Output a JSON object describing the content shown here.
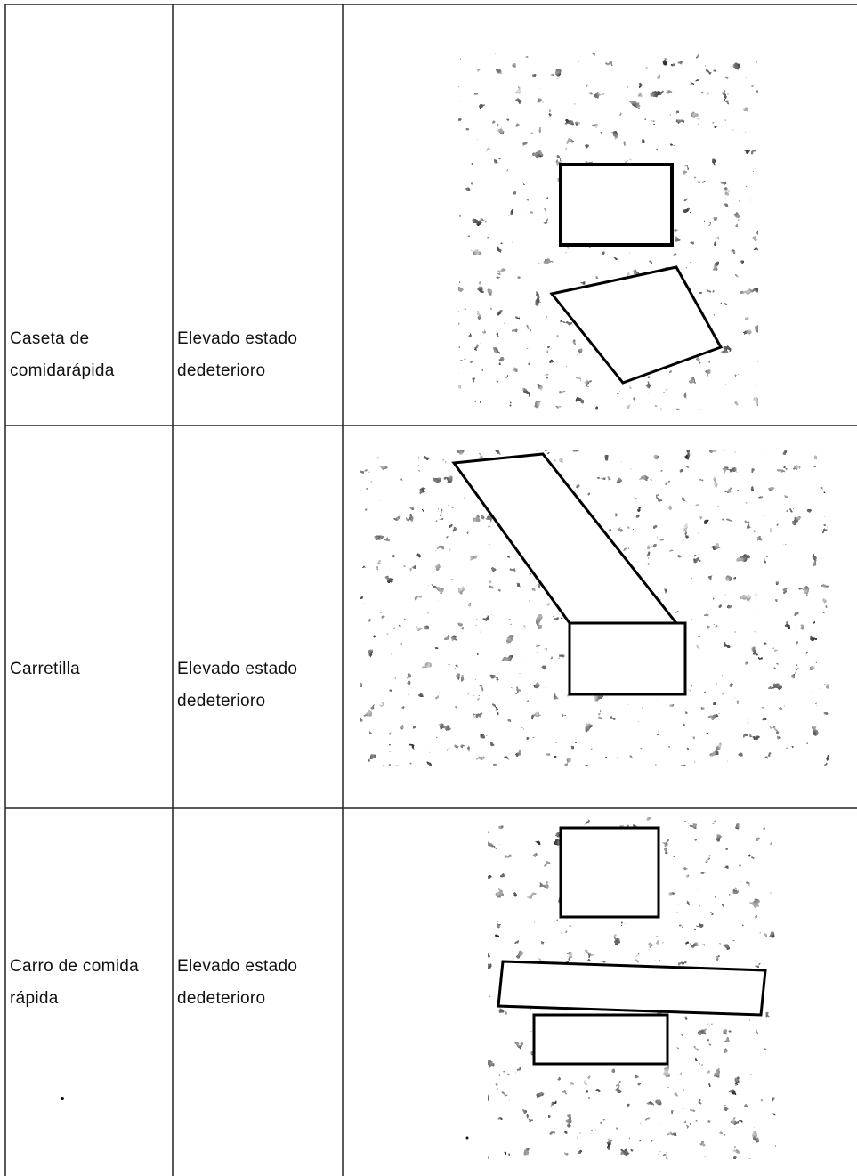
{
  "table": {
    "rows": [
      [
        [
          "Caseta de",
          "comidarápida"
        ],
        [
          "Elevado estado",
          "dedeterioro"
        ]
      ],
      [
        [
          "Carretilla"
        ],
        [
          "Elevado estado",
          "dedeterioro"
        ]
      ],
      [
        [
          "Carro de comida",
          "rápida"
        ],
        [
          "Elevado estado",
          "dedeterioro"
        ]
      ]
    ]
  }
}
